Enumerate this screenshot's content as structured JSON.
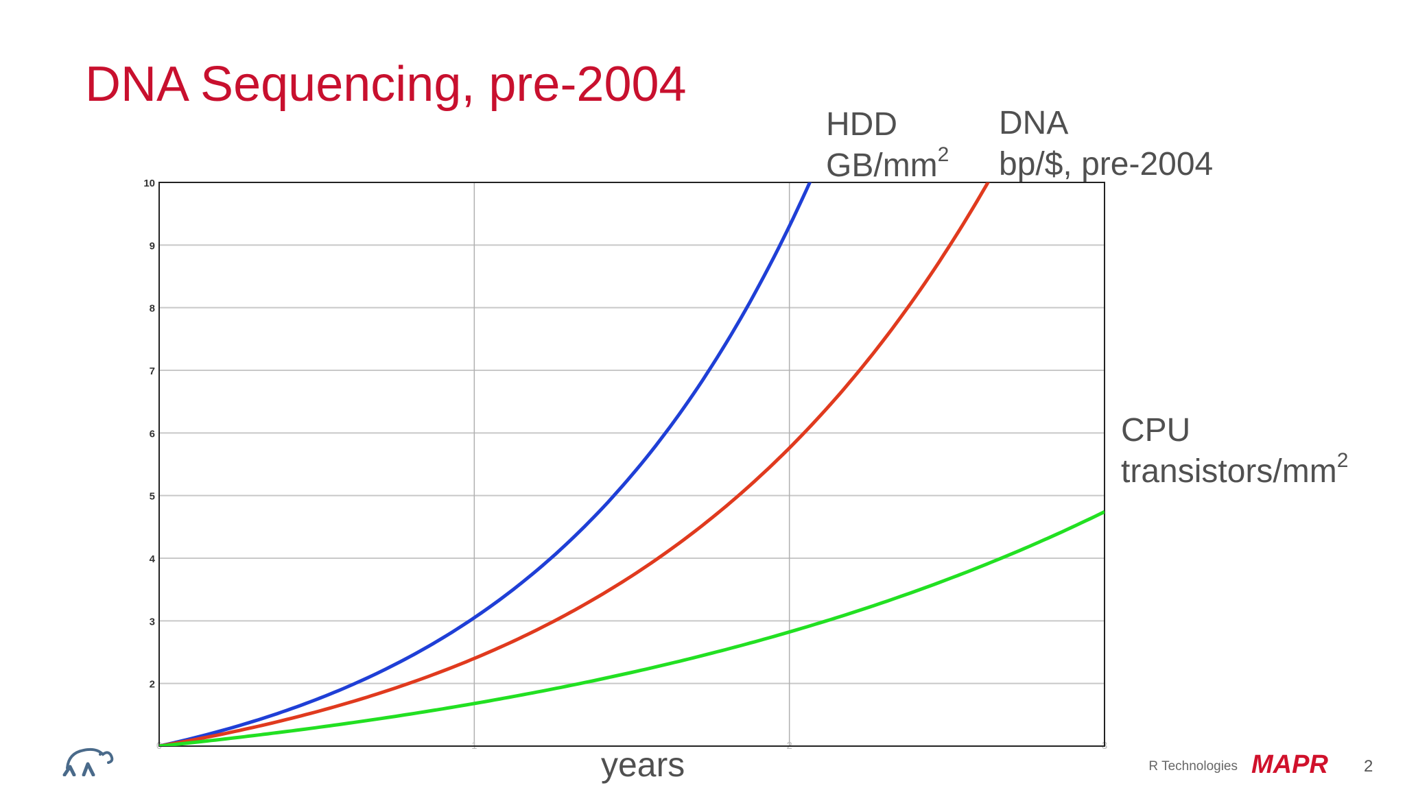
{
  "slide": {
    "title": "DNA Sequencing, pre-2004",
    "page_number": "2",
    "footer_text": "MapR Technologies",
    "logo_text": "MAPR"
  },
  "labels": {
    "hdd_line1": "HDD",
    "hdd_line2": "GB/mm",
    "dna_line1": "DNA",
    "dna_line2": "bp/$, pre-2004",
    "cpu_line1": "CPU",
    "cpu_line2": "transistors/mm",
    "superscript": "2"
  },
  "chart_data": {
    "type": "line",
    "title": "",
    "xlabel": "years",
    "ylabel": "",
    "xlim": [
      0,
      3
    ],
    "ylim": [
      1,
      10
    ],
    "grid": true,
    "x_ticks": [
      "0",
      "1",
      "2",
      "3"
    ],
    "y_ticks": [
      "2",
      "3",
      "4",
      "5",
      "6",
      "7",
      "8",
      "9",
      "10"
    ],
    "colors": {
      "hdd": "#1f3fd6",
      "dna": "#e03a1e",
      "cpu": "#22e022"
    },
    "series": [
      {
        "name": "HDD GB/mm²",
        "key": "hdd",
        "growth_per_year": 3.05,
        "x": [
          0,
          0.5,
          1,
          1.5,
          2,
          2.07
        ],
        "values": [
          1,
          1.75,
          3.05,
          5.33,
          9.3,
          10
        ]
      },
      {
        "name": "DNA bp/$, pre-2004",
        "key": "dna",
        "growth_per_year": 2.4,
        "x": [
          0,
          0.5,
          1,
          1.5,
          2,
          2.5,
          2.63
        ],
        "values": [
          1,
          1.55,
          2.4,
          3.72,
          5.76,
          8.92,
          10
        ]
      },
      {
        "name": "CPU transistors/mm²",
        "key": "cpu",
        "growth_per_year": 1.68,
        "x": [
          0,
          0.5,
          1,
          1.5,
          2,
          2.5,
          3
        ],
        "values": [
          1,
          1.3,
          1.68,
          2.18,
          2.82,
          3.66,
          4.74
        ]
      }
    ]
  }
}
